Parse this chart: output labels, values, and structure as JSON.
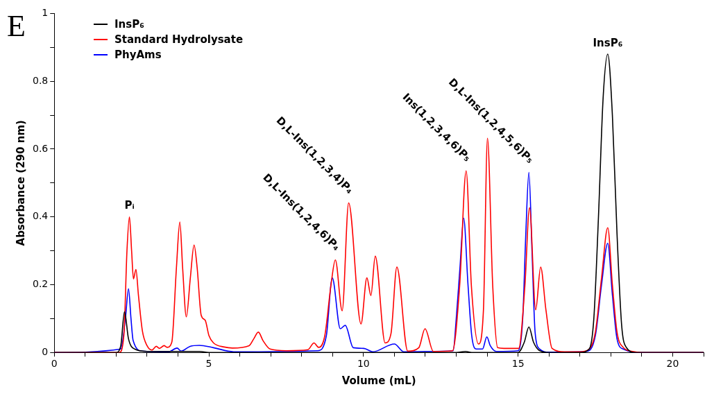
{
  "chart_data": {
    "type": "line",
    "xlabel": "Volume (mL)",
    "ylabel": "Absorbance (290 nm)",
    "xlim": [
      0,
      21
    ],
    "ylim": [
      0,
      1
    ],
    "xticks": [
      0,
      {
        "value": 1,
        "label": null
      },
      {
        "value": 2,
        "label": null
      },
      {
        "value": 3,
        "label": null
      },
      {
        "value": 4,
        "label": null
      },
      5,
      {
        "value": 6,
        "label": null
      },
      {
        "value": 7,
        "label": null
      },
      {
        "value": 8,
        "label": null
      },
      {
        "value": 9,
        "label": null
      },
      10,
      {
        "value": 11,
        "label": null
      },
      {
        "value": 12,
        "label": null
      },
      {
        "value": 13,
        "label": null
      },
      {
        "value": 14,
        "label": null
      },
      15,
      {
        "value": 16,
        "label": null
      },
      {
        "value": 17,
        "label": null
      },
      {
        "value": 18,
        "label": null
      },
      {
        "value": 19,
        "label": null
      },
      20,
      {
        "value": 21,
        "label": null
      }
    ],
    "yticks": [
      0,
      {
        "value": 0.1,
        "label": null
      },
      0.2,
      {
        "value": 0.3,
        "label": null
      },
      0.4,
      {
        "value": 0.5,
        "label": null
      },
      0.6,
      {
        "value": 0.7,
        "label": null
      },
      0.8,
      {
        "value": 0.9,
        "label": null
      },
      1
    ],
    "legend": "top left",
    "marker": "none",
    "series": [
      {
        "name": "InsP₆",
        "color": "#000000",
        "x": [
          0,
          2.0,
          2.15,
          2.27,
          2.4,
          2.6,
          3.0,
          4.7,
          5.0,
          13.0,
          13.3,
          13.5,
          15.0,
          15.2,
          15.35,
          15.5,
          15.7,
          16.0,
          17.0,
          17.3,
          17.45,
          17.6,
          17.75,
          17.9,
          18.05,
          18.2,
          18.35,
          18.5,
          18.8,
          21
        ],
        "values": [
          0,
          0,
          0.02,
          0.12,
          0.04,
          0.01,
          0.003,
          0.003,
          0,
          0,
          0.003,
          0,
          0,
          0.03,
          0.075,
          0.03,
          0.005,
          0,
          0,
          0.01,
          0.1,
          0.4,
          0.75,
          0.88,
          0.7,
          0.35,
          0.08,
          0.015,
          0,
          0
        ]
      },
      {
        "name": "Standard Hydrolysate",
        "color": "#ff0000",
        "x": [
          0,
          2.1,
          2.25,
          2.35,
          2.43,
          2.5,
          2.56,
          2.64,
          2.72,
          2.85,
          3.0,
          3.16,
          3.3,
          3.4,
          3.55,
          3.65,
          3.8,
          3.95,
          4.06,
          4.15,
          4.27,
          4.4,
          4.52,
          4.62,
          4.75,
          4.88,
          5.0,
          5.15,
          5.5,
          5.76,
          6.3,
          6.45,
          6.6,
          6.75,
          6.98,
          7.5,
          8.2,
          8.4,
          8.55,
          8.75,
          8.95,
          9.09,
          9.31,
          9.52,
          9.92,
          10.11,
          10.24,
          10.38,
          10.7,
          10.89,
          11.08,
          11.43,
          11.79,
          11.99,
          12.26,
          12.88,
          13.11,
          13.32,
          13.49,
          13.72,
          13.88,
          14.01,
          14.18,
          14.34,
          14.54,
          15.02,
          15.22,
          15.37,
          15.57,
          15.73,
          15.9,
          16.1,
          16.5,
          17.0,
          17.3,
          17.5,
          17.7,
          17.9,
          18.05,
          18.2,
          18.4,
          18.7,
          19.0,
          21
        ],
        "values": [
          0,
          0,
          0.05,
          0.3,
          0.4,
          0.3,
          0.217,
          0.245,
          0.17,
          0.063,
          0.02,
          0.007,
          0.018,
          0.012,
          0.02,
          0.015,
          0.03,
          0.25,
          0.385,
          0.25,
          0.105,
          0.22,
          0.317,
          0.25,
          0.11,
          0.095,
          0.05,
          0.028,
          0.016,
          0.013,
          0.02,
          0.04,
          0.06,
          0.035,
          0.01,
          0.005,
          0.008,
          0.028,
          0.015,
          0.05,
          0.2,
          0.273,
          0.123,
          0.441,
          0.084,
          0.22,
          0.168,
          0.284,
          0.028,
          0.056,
          0.252,
          0.004,
          0.014,
          0.07,
          0.003,
          0.005,
          0.196,
          0.536,
          0.196,
          0.025,
          0.126,
          0.632,
          0.196,
          0.014,
          0.012,
          0.012,
          0.196,
          0.427,
          0.126,
          0.252,
          0.126,
          0.012,
          0.002,
          0.002,
          0.01,
          0.06,
          0.22,
          0.368,
          0.2,
          0.06,
          0.015,
          0.003,
          0,
          0
        ]
      },
      {
        "name": "PhyAms",
        "color": "#0000ff",
        "x": [
          0,
          2.15,
          2.3,
          2.4,
          2.48,
          2.55,
          2.85,
          3.7,
          3.97,
          4.1,
          4.39,
          4.69,
          5.15,
          5.8,
          8.52,
          8.8,
          8.99,
          9.25,
          9.41,
          9.67,
          10.01,
          10.3,
          11.0,
          11.3,
          12.0,
          12.9,
          13.0,
          13.12,
          13.24,
          13.38,
          13.5,
          13.65,
          13.85,
          13.99,
          14.1,
          14.3,
          15.0,
          15.15,
          15.25,
          15.35,
          15.45,
          15.55,
          15.7,
          16.0,
          17.2,
          17.5,
          17.7,
          17.9,
          18.05,
          18.2,
          18.4,
          19.0,
          21
        ],
        "values": [
          0,
          0.01,
          0.1,
          0.188,
          0.1,
          0.035,
          0.004,
          0.002,
          0.013,
          0.004,
          0.018,
          0.021,
          0.014,
          0.002,
          0.005,
          0.05,
          0.22,
          0.07,
          0.08,
          0.014,
          0.012,
          0.002,
          0.025,
          0.002,
          0.003,
          0.005,
          0.1,
          0.25,
          0.396,
          0.2,
          0.05,
          0.01,
          0.01,
          0.046,
          0.02,
          0.003,
          0.005,
          0.1,
          0.35,
          0.531,
          0.3,
          0.06,
          0.01,
          0.001,
          0.003,
          0.05,
          0.2,
          0.322,
          0.17,
          0.04,
          0.01,
          0,
          0
        ]
      }
    ],
    "annotations": [
      "E",
      {
        "text": "Pᵢ",
        "x": 2.43,
        "y": 0.4
      },
      {
        "text": "D,L-Ins(1,2,4,6)P₄",
        "x": 9.09,
        "y": 0.273
      },
      {
        "text": "D,L-Ins(1,2,3,4)P₄",
        "x": 9.52,
        "y": 0.441
      },
      {
        "text": "Ins(1,2,3,4,6)P₅",
        "x": 13.32,
        "y": 0.536
      },
      {
        "text": "D,L-Ins(1,2,4,5,6)P₅",
        "x": 15.35,
        "y": 0.531
      },
      {
        "text": "InsP₆",
        "x": 17.9,
        "y": 0.879
      }
    ]
  }
}
